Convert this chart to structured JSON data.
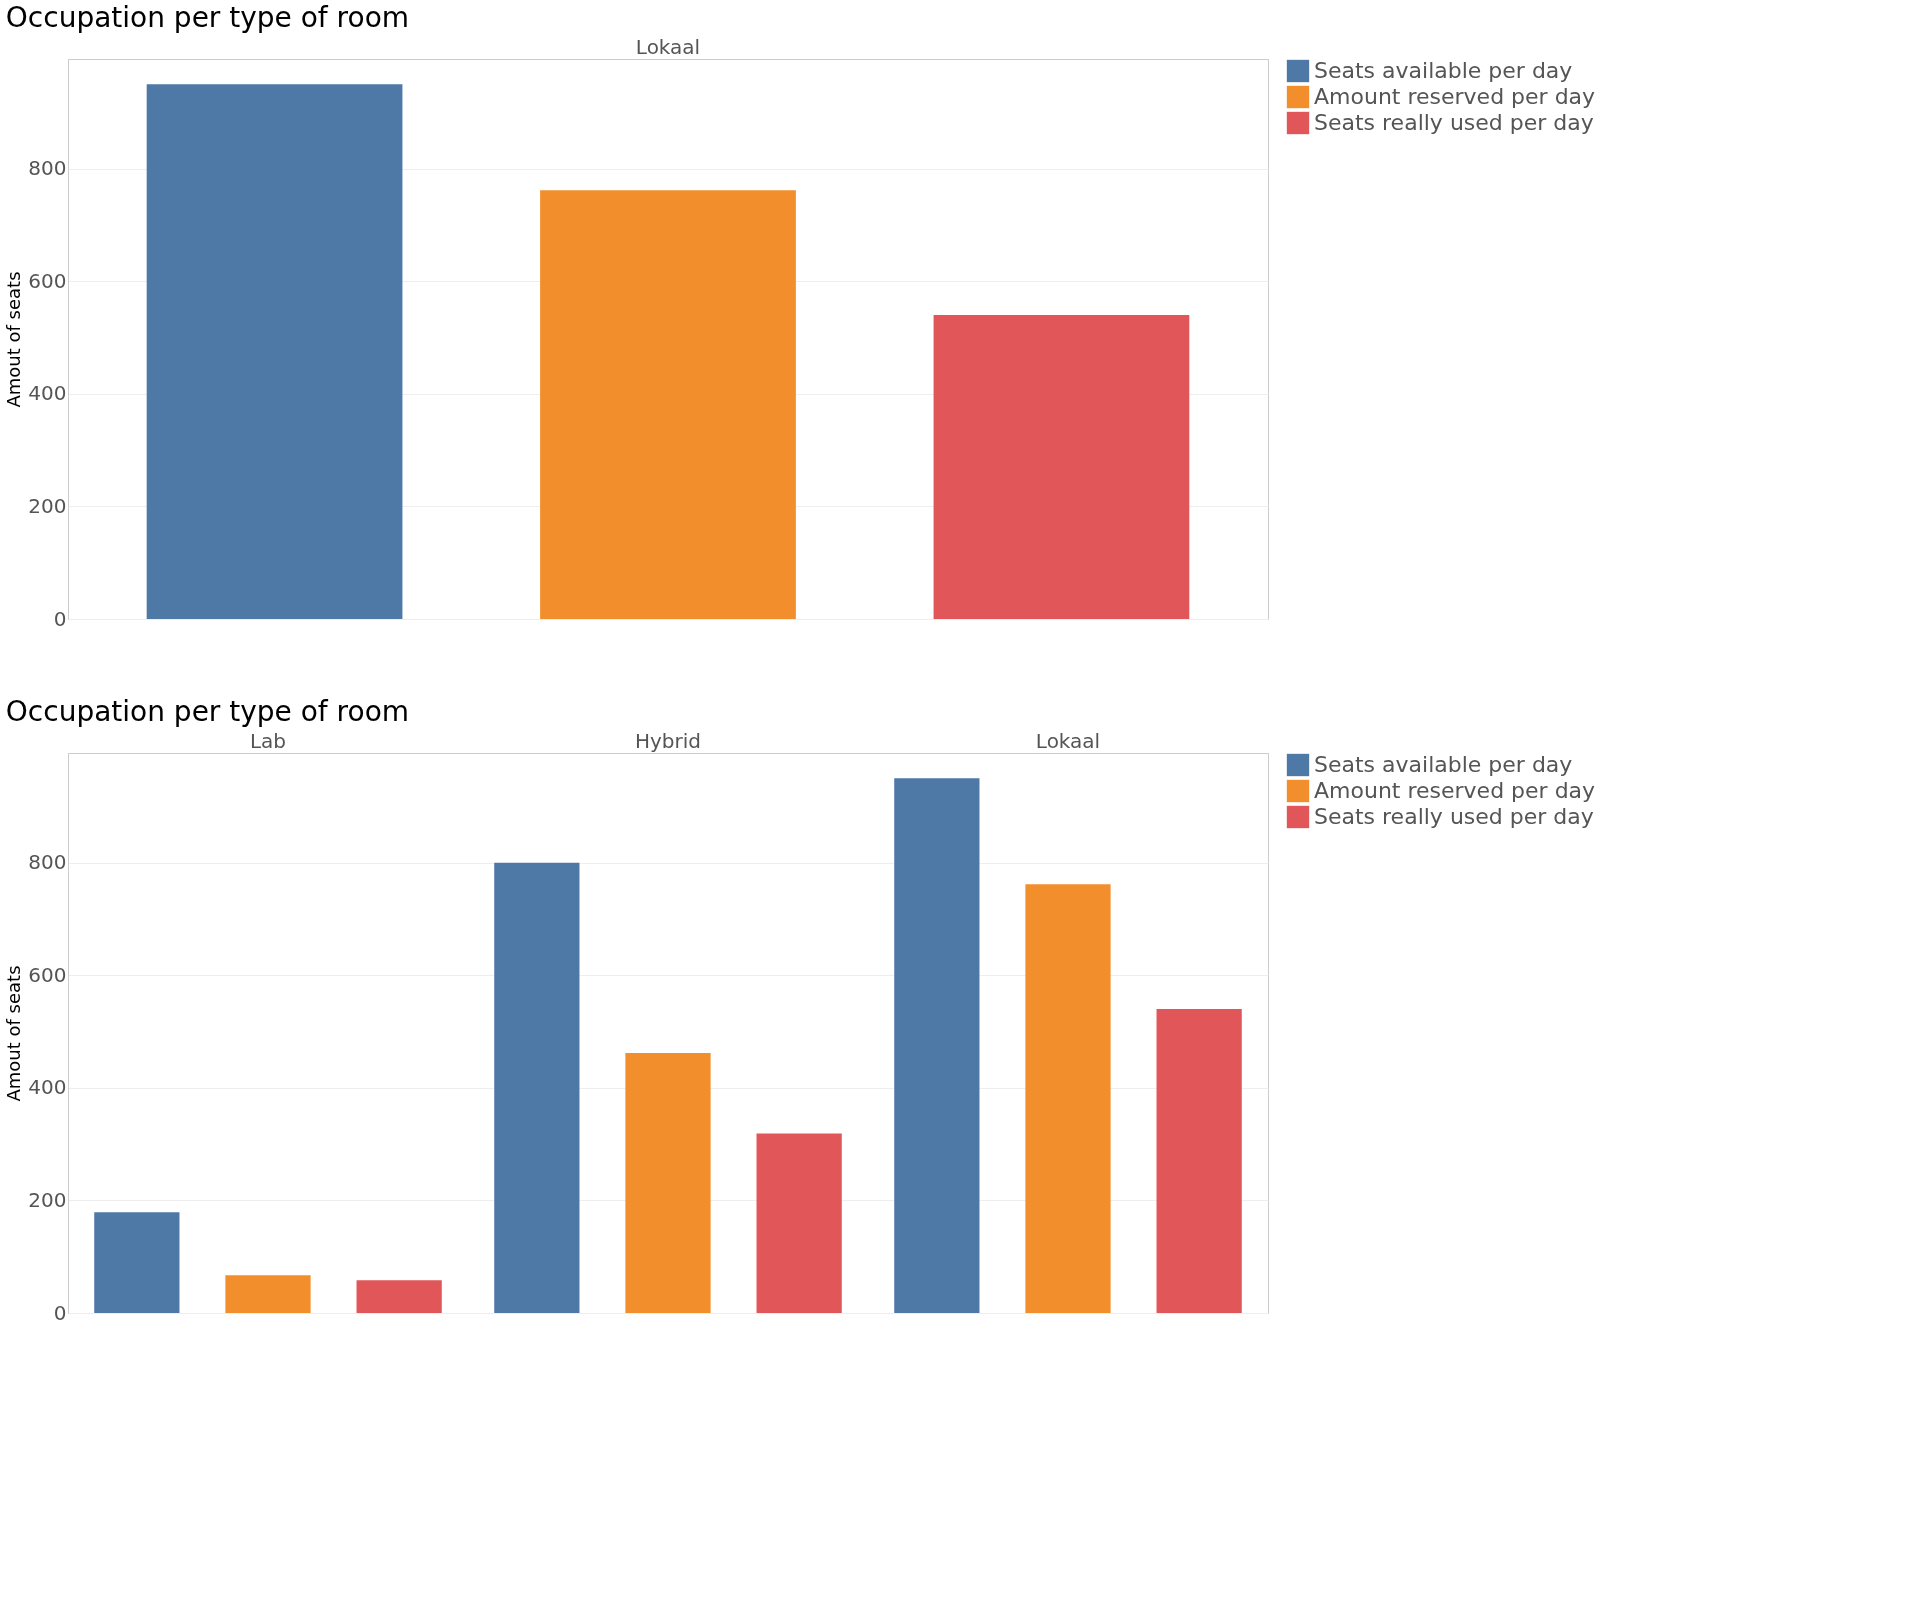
{
  "chart_data": [
    {
      "type": "bar",
      "title": "Occupation per type of room",
      "ylabel": "Amout of seats",
      "categories": [
        "Lokaal"
      ],
      "series": [
        {
          "name": "Seats available per day",
          "color": "#4e79a7",
          "values": [
            950
          ]
        },
        {
          "name": "Amount reserved per day",
          "color": "#f28e2b",
          "values": [
            762
          ]
        },
        {
          "name": "Seats really used per day",
          "color": "#e15759",
          "values": [
            540
          ]
        }
      ],
      "ylim": [
        0,
        995
      ],
      "yticks": [
        0,
        200,
        400,
        600,
        800
      ],
      "grid": "y",
      "legend": "top right"
    },
    {
      "type": "bar",
      "title": "Occupation per type of room",
      "ylabel": "Amout of seats",
      "categories": [
        "Lab",
        "Hybrid",
        "Lokaal"
      ],
      "series": [
        {
          "name": "Seats available per day",
          "color": "#4e79a7",
          "values": [
            179,
            800,
            950
          ]
        },
        {
          "name": "Amount reserved per day",
          "color": "#f28e2b",
          "values": [
            67,
            462,
            762
          ]
        },
        {
          "name": "Seats really used per day",
          "color": "#e15759",
          "values": [
            58,
            319,
            540
          ]
        }
      ],
      "ylim": [
        0,
        995
      ],
      "yticks": [
        0,
        200,
        400,
        600,
        800
      ],
      "grid": "y",
      "legend": "top right"
    }
  ]
}
